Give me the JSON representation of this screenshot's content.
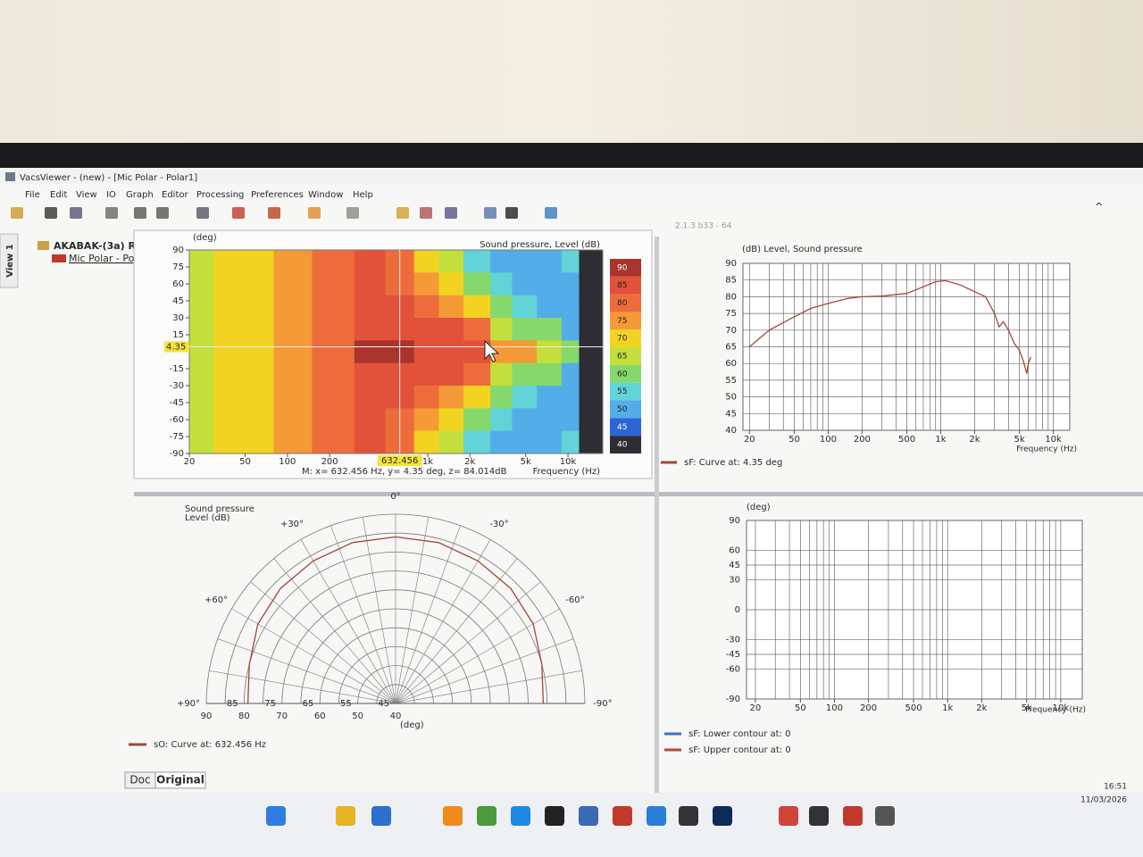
{
  "window": {
    "title": "VacsViewer - (new) - [Mic Polar - Polar1]",
    "menu": [
      "File",
      "Edit",
      "View",
      "IO",
      "Graph",
      "Editor",
      "Processing",
      "Preferences",
      "Window",
      "Help"
    ],
    "version": "2.1.3 b33 - 64"
  },
  "tree": {
    "tab": "View 1",
    "root": "AKABAK-(3a) R",
    "child": "Mic Polar - Pol"
  },
  "contour": {
    "type": "heatmap",
    "ylabel": "(deg)",
    "title": "Sound pressure, Level  (dB)",
    "xlabel": "Frequency  (Hz)",
    "log_x": true,
    "xlim": [
      20,
      17700
    ],
    "ylim": [
      -90,
      90
    ],
    "xticks": [
      20,
      50,
      100,
      200,
      {
        "value": 1000,
        "label": "1k"
      },
      {
        "value": 2000,
        "label": "2k"
      },
      {
        "value": 5000,
        "label": "5k"
      },
      {
        "value": 10000,
        "label": "10k"
      }
    ],
    "yticks": [
      90,
      75,
      60,
      45,
      30,
      15,
      -15,
      -30,
      -45,
      -60,
      -75,
      -90
    ],
    "x_edges": [
      20,
      30,
      40,
      80,
      150,
      300,
      500,
      800,
      1200,
      1800,
      2800,
      4000,
      6000,
      9000,
      12000,
      17700
    ],
    "y_edges": [
      90,
      70,
      50,
      30,
      10,
      -10,
      -30,
      -50,
      -70,
      -90
    ],
    "values": [
      [
        63,
        68,
        69,
        74,
        79,
        83,
        76,
        68,
        62,
        54,
        50,
        46,
        48,
        52,
        35
      ],
      [
        63,
        68,
        69,
        74,
        79,
        83,
        80,
        74,
        66,
        58,
        52,
        48,
        46,
        50,
        35
      ],
      [
        63,
        68,
        69,
        74,
        79,
        83,
        83,
        80,
        74,
        66,
        56,
        54,
        50,
        48,
        35
      ],
      [
        63,
        68,
        69,
        74,
        79,
        84,
        84,
        83,
        81,
        77,
        64,
        60,
        56,
        50,
        35
      ],
      [
        63,
        68,
        69,
        74,
        79,
        86,
        86,
        84,
        83,
        82,
        72,
        74,
        62,
        56,
        35
      ],
      [
        63,
        68,
        69,
        74,
        79,
        84,
        84,
        83,
        81,
        77,
        64,
        60,
        56,
        50,
        35
      ],
      [
        63,
        68,
        69,
        74,
        79,
        83,
        83,
        80,
        74,
        66,
        56,
        54,
        50,
        48,
        35
      ],
      [
        63,
        68,
        69,
        74,
        79,
        83,
        80,
        74,
        66,
        58,
        52,
        48,
        46,
        50,
        35
      ],
      [
        63,
        68,
        69,
        74,
        79,
        83,
        76,
        68,
        62,
        54,
        50,
        46,
        48,
        52,
        35
      ]
    ],
    "levels": [
      90,
      85,
      80,
      75,
      70,
      65,
      60,
      55,
      50,
      45,
      40
    ],
    "level_colors": [
      "#a8342c",
      "#e2523a",
      "#ee6c3c",
      "#f49a36",
      "#f2d322",
      "#c4df3c",
      "#86d86c",
      "#62d3d6",
      "#52ade8",
      "#2b66d4",
      "#2d2d33"
    ],
    "cursor": {
      "x": {
        "value": 632.456,
        "label": "632.456"
      },
      "y": {
        "value": 4.35,
        "label": "4.35"
      }
    },
    "readout": "M:  x= 632.456 Hz,  y= 4.35 deg,  z= 84.014dB"
  },
  "level_plot": {
    "type": "line",
    "ylabel": "(dB)  Level, Sound pressure",
    "xlabel": "Frequency  (Hz)",
    "log_x": true,
    "xlim": [
      17.5,
      14000
    ],
    "ylim": [
      40,
      90
    ],
    "xticks": [
      20,
      50,
      100,
      200,
      500,
      {
        "value": 1000,
        "label": "1k"
      },
      {
        "value": 2000,
        "label": "2k"
      },
      {
        "value": 5000,
        "label": "5k"
      },
      {
        "value": 10000,
        "label": "10k"
      }
    ],
    "yticks": [
      90,
      85,
      80,
      75,
      70,
      65,
      60,
      55,
      50,
      45,
      40
    ],
    "xgrid": [
      20,
      30,
      40,
      50,
      60,
      70,
      80,
      90,
      100,
      200,
      300,
      400,
      500,
      600,
      700,
      800,
      900,
      1000,
      2000,
      3000,
      4000,
      5000,
      6000,
      7000,
      8000,
      9000,
      10000
    ],
    "grid": true,
    "series": [
      {
        "name": "sF: Curve at: 4.35 deg",
        "color": "#9b4a3a",
        "x": [
          20,
          30,
          50,
          70,
          100,
          150,
          200,
          300,
          500,
          700,
          900,
          1100,
          1500,
          2000,
          2500,
          3000,
          3300,
          3600,
          4000,
          4500,
          5000,
          5500,
          5800,
          6000,
          6300
        ],
        "values": [
          65,
          70,
          74,
          76.5,
          78,
          79.5,
          80,
          80.2,
          81,
          83,
          84.5,
          84.8,
          83.5,
          81.5,
          80,
          75,
          71,
          72.5,
          70,
          66,
          64,
          60,
          57,
          60,
          62
        ]
      }
    ]
  },
  "polar": {
    "type": "polar",
    "title_lines": [
      "Sound pressure",
      "Level  (dB)"
    ],
    "angle_unit": "(deg)",
    "rlim": [
      40,
      90
    ],
    "rticks": [
      90,
      85,
      80,
      75,
      70,
      65,
      60,
      55,
      50,
      45,
      40
    ],
    "angle_ticks": [
      {
        "value": 0,
        "label": "0°"
      },
      {
        "value": 30,
        "label": "+30°"
      },
      {
        "value": -30,
        "label": "-30°"
      },
      {
        "value": 60,
        "label": "+60°"
      },
      {
        "value": -60,
        "label": "-60°"
      },
      {
        "value": 90,
        "label": "+90°"
      },
      {
        "value": -90,
        "label": "-90°"
      }
    ],
    "angle_grid": [
      -90,
      -80,
      -70,
      -60,
      -50,
      -40,
      -30,
      -20,
      -10,
      0,
      10,
      20,
      30,
      40,
      50,
      60,
      70,
      80,
      90
    ],
    "series": [
      {
        "name": "sO: Curve at: 632.456 Hz",
        "color": "#9b4a3a",
        "angles": [
          -90,
          -75,
          -60,
          -45,
          -30,
          -15,
          0,
          15,
          30,
          45,
          60,
          75,
          90
        ],
        "values": [
          79,
          80,
          82,
          83,
          83.5,
          84,
          84,
          84,
          83.5,
          83,
          82,
          80,
          79
        ]
      }
    ]
  },
  "contour_lines": {
    "type": "contour-lines",
    "ylabel": "(deg)",
    "xlabel": "Frequency  (Hz)",
    "log_x": true,
    "xlim": [
      16.7,
      15500
    ],
    "ylim": [
      -90,
      90
    ],
    "xticks": [
      20,
      50,
      100,
      200,
      500,
      {
        "value": 1000,
        "label": "1k"
      },
      {
        "value": 2000,
        "label": "2k"
      },
      {
        "value": 5000,
        "label": "5k"
      },
      {
        "value": 10000,
        "label": "10k"
      }
    ],
    "yticks": [
      90,
      60,
      45,
      30,
      0,
      -30,
      -45,
      -60,
      -90
    ],
    "xgrid": [
      20,
      30,
      40,
      50,
      60,
      70,
      80,
      90,
      100,
      200,
      300,
      400,
      500,
      600,
      700,
      800,
      900,
      1000,
      2000,
      3000,
      4000,
      5000,
      6000,
      7000,
      8000,
      9000,
      10000
    ],
    "grid": true,
    "series": [
      {
        "name": "sF: Lower contour at: 0",
        "color": "#3a6fd0"
      },
      {
        "name": "sF: Upper contour at: 0",
        "color": "#b04a3a"
      }
    ]
  },
  "tabs": [
    "Doc",
    "Original"
  ],
  "taskbar": {
    "time": "16:51",
    "date": "11/03/2026"
  }
}
